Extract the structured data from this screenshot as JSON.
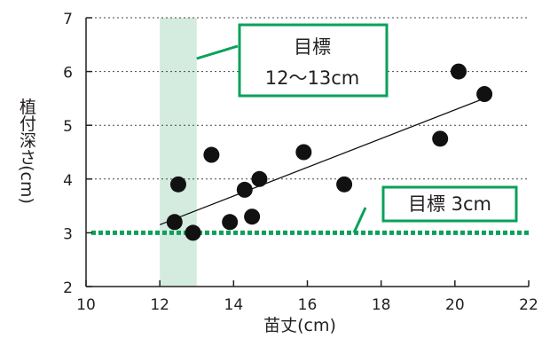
{
  "chart_data": {
    "type": "scatter",
    "xlabel": "苗丈(cm)",
    "ylabel": "植付深さ(cm)",
    "xlim": [
      10,
      22
    ],
    "ylim": [
      2,
      7
    ],
    "x_ticks": [
      10,
      12,
      14,
      16,
      18,
      20,
      22
    ],
    "y_ticks": [
      2,
      3,
      4,
      5,
      6,
      7
    ],
    "grid": "horizontal dotted",
    "points": [
      {
        "x": 12.4,
        "y": 3.2
      },
      {
        "x": 12.5,
        "y": 3.9
      },
      {
        "x": 12.9,
        "y": 3.0
      },
      {
        "x": 13.4,
        "y": 4.45
      },
      {
        "x": 13.9,
        "y": 3.2
      },
      {
        "x": 14.3,
        "y": 3.8
      },
      {
        "x": 14.5,
        "y": 3.3
      },
      {
        "x": 14.7,
        "y": 4.0
      },
      {
        "x": 15.9,
        "y": 4.5
      },
      {
        "x": 17.0,
        "y": 3.9
      },
      {
        "x": 19.6,
        "y": 4.75
      },
      {
        "x": 20.1,
        "y": 6.0
      },
      {
        "x": 20.8,
        "y": 5.58
      }
    ],
    "trendline": {
      "x": [
        12.0,
        20.8
      ],
      "y": [
        3.15,
        5.5
      ]
    },
    "target_band": {
      "x": [
        12,
        13
      ],
      "label_line1": "目標",
      "label_line2": "12～13cm"
    },
    "target_line": {
      "y": 3,
      "label": "目標 3cm"
    },
    "colors": {
      "band": "#d4ebdf",
      "target": "#0aa15a",
      "point": "#111111",
      "axis": "#231f20"
    }
  }
}
